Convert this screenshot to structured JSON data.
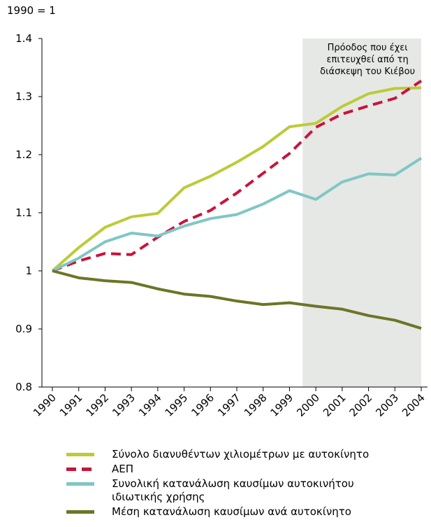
{
  "chart_data": {
    "type": "line",
    "y_label": "1990 = 1",
    "annotation": [
      "Πρόοδος που έχει",
      "επιτευχθεί από τη",
      "διάσκεψη του Κιέβου"
    ],
    "categories": [
      "1990",
      "1991",
      "1992",
      "1993",
      "1994",
      "1995",
      "1996",
      "1997",
      "1998",
      "1999",
      "2000",
      "2001",
      "2002",
      "2003",
      "2004"
    ],
    "ylim": [
      0.8,
      1.4
    ],
    "yticks": [
      0.8,
      0.9,
      1,
      1.1,
      1.2,
      1.3,
      1.4
    ],
    "series": [
      {
        "name": "Σύνολο διανυθέντων χιλιομέτρων με αυτοκίνητο",
        "color": "#bccb37",
        "dashed": false,
        "values": [
          1.0,
          1.04,
          1.075,
          1.093,
          1.099,
          1.143,
          1.163,
          1.187,
          1.214,
          1.248,
          1.254,
          1.283,
          1.305,
          1.314,
          1.315
        ]
      },
      {
        "name": "ΑΕΠ",
        "color": "#c8143c",
        "dashed": true,
        "values": [
          1.0,
          1.017,
          1.03,
          1.028,
          1.058,
          1.085,
          1.104,
          1.134,
          1.168,
          1.202,
          1.247,
          1.27,
          1.284,
          1.297,
          1.327
        ]
      },
      {
        "name": "Συνολική κατανάλωση καυσίμων αυτοκινήτου ιδιωτικής χρήσης",
        "color": "#7fc7c4",
        "dashed": false,
        "values": [
          1.0,
          1.022,
          1.05,
          1.065,
          1.06,
          1.077,
          1.09,
          1.097,
          1.115,
          1.138,
          1.123,
          1.153,
          1.167,
          1.165,
          1.194
        ]
      },
      {
        "name": "Μέση κατανάλωση καυσίμων ανά αυτοκίνητο",
        "color": "#6d7526",
        "dashed": false,
        "values": [
          1.0,
          0.988,
          0.983,
          0.98,
          0.969,
          0.96,
          0.956,
          0.948,
          0.942,
          0.945,
          0.939,
          0.934,
          0.923,
          0.915,
          0.901
        ]
      }
    ]
  }
}
